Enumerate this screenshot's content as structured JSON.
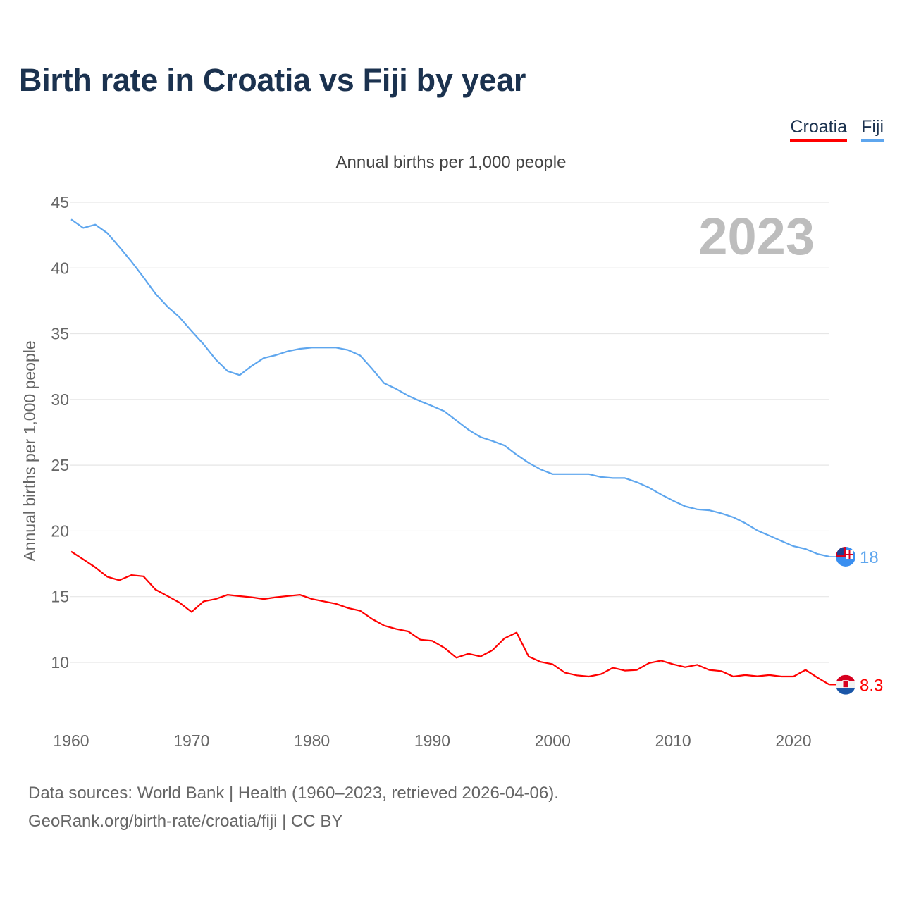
{
  "title": "Birth rate in Croatia vs Fiji by year",
  "legend": [
    {
      "label": "Croatia",
      "color": "#ff0000"
    },
    {
      "label": "Fiji",
      "color": "#5ea6ee"
    }
  ],
  "footer": {
    "line1": "Data sources: World Bank | Health (1960–2023, retrieved 2026-04-06).",
    "line2": "GeoRank.org/birth-rate/croatia/fiji | CC BY"
  },
  "chart_data": {
    "type": "line",
    "title": "Birth rate in Croatia vs Fiji by year",
    "subtitle": "Annual births per 1,000 people",
    "ylabel": "Annual births per 1,000 people",
    "xlabel": "",
    "year_watermark": "2023",
    "xlim": [
      1960,
      2023
    ],
    "ylim": [
      7,
      45
    ],
    "xticks": [
      "1960",
      "1970",
      "1980",
      "1990",
      "2000",
      "2010",
      "2020"
    ],
    "yticks": [
      "10",
      "15",
      "20",
      "25",
      "30",
      "35",
      "40",
      "45"
    ],
    "grid": true,
    "legend_position": "top-right",
    "x_start": 1960,
    "series": [
      {
        "name": "Croatia",
        "color": "#ff0000",
        "end_label": "8.3",
        "values": [
          18.43,
          17.84,
          17.23,
          16.52,
          16.25,
          16.64,
          16.55,
          15.54,
          15.05,
          14.55,
          13.84,
          14.64,
          14.82,
          15.14,
          15.04,
          14.95,
          14.82,
          14.95,
          15.05,
          15.14,
          14.82,
          14.64,
          14.46,
          14.14,
          13.93,
          13.3,
          12.8,
          12.54,
          12.36,
          11.73,
          11.64,
          11.11,
          10.36,
          10.66,
          10.45,
          10.93,
          11.84,
          12.27,
          10.45,
          10.04,
          9.86,
          9.23,
          9.02,
          8.93,
          9.11,
          9.59,
          9.38,
          9.43,
          9.95,
          10.14,
          9.86,
          9.64,
          9.82,
          9.43,
          9.34,
          8.93,
          9.04,
          8.95,
          9.04,
          8.93,
          8.93,
          9.43,
          8.84,
          8.3
        ]
      },
      {
        "name": "Fiji",
        "color": "#5ea6ee",
        "end_label": "18",
        "values": [
          43.7,
          43.05,
          43.3,
          42.66,
          41.6,
          40.5,
          39.3,
          38.05,
          37.05,
          36.26,
          35.2,
          34.2,
          33.05,
          32.15,
          31.85,
          32.55,
          33.15,
          33.37,
          33.67,
          33.85,
          33.94,
          33.94,
          33.94,
          33.76,
          33.35,
          32.33,
          31.23,
          30.8,
          30.28,
          29.87,
          29.5,
          29.1,
          28.4,
          27.7,
          27.14,
          26.84,
          26.5,
          25.8,
          25.18,
          24.68,
          24.32,
          24.32,
          24.32,
          24.32,
          24.1,
          24.02,
          24.02,
          23.7,
          23.3,
          22.77,
          22.3,
          21.87,
          21.64,
          21.57,
          21.34,
          21.04,
          20.59,
          20.04,
          19.64,
          19.23,
          18.84,
          18.63,
          18.25,
          18.04
        ]
      }
    ]
  }
}
